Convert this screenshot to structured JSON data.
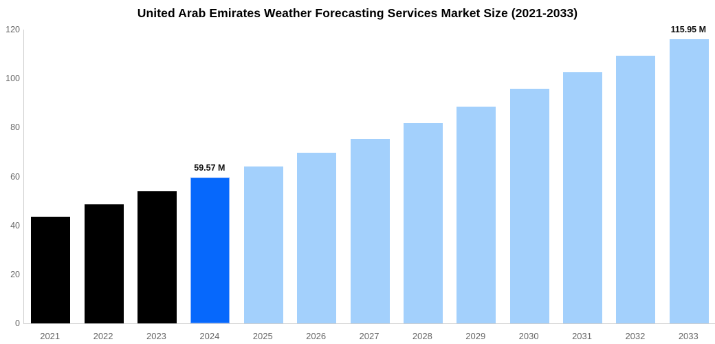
{
  "chart_data": {
    "type": "bar",
    "title": "United Arab Emirates Weather Forecasting Services Market Size (2021-2033)",
    "xlabel": "",
    "ylabel": "",
    "unit": "M",
    "categories": [
      "2021",
      "2022",
      "2023",
      "2024",
      "2025",
      "2026",
      "2027",
      "2028",
      "2029",
      "2030",
      "2031",
      "2032",
      "2033"
    ],
    "values": [
      43.6,
      48.6,
      53.9,
      59.57,
      64.2,
      69.6,
      75.4,
      81.8,
      88.5,
      95.9,
      102.6,
      109.3,
      115.95
    ],
    "bar_roles": [
      "historical",
      "historical",
      "historical",
      "current",
      "forecast",
      "forecast",
      "forecast",
      "forecast",
      "forecast",
      "forecast",
      "forecast",
      "forecast",
      "forecast"
    ],
    "data_labels": [
      "",
      "",
      "",
      "59.57 M",
      "",
      "",
      "",
      "",
      "",
      "",
      "",
      "",
      "115.95 M"
    ],
    "ylim": [
      0,
      120
    ],
    "yticks": [
      0,
      20,
      40,
      60,
      80,
      100,
      120
    ],
    "grid": false,
    "legend": false,
    "colors": {
      "historical": "#000000",
      "current": "#0668fc",
      "current_border": "#7dabfa",
      "forecast": "#a3d0fc",
      "axis_line": "#cfcfcf",
      "tick_text": "#666666",
      "title_text": "#000000",
      "data_label_text": "#111111",
      "background": "#ffffff"
    }
  }
}
